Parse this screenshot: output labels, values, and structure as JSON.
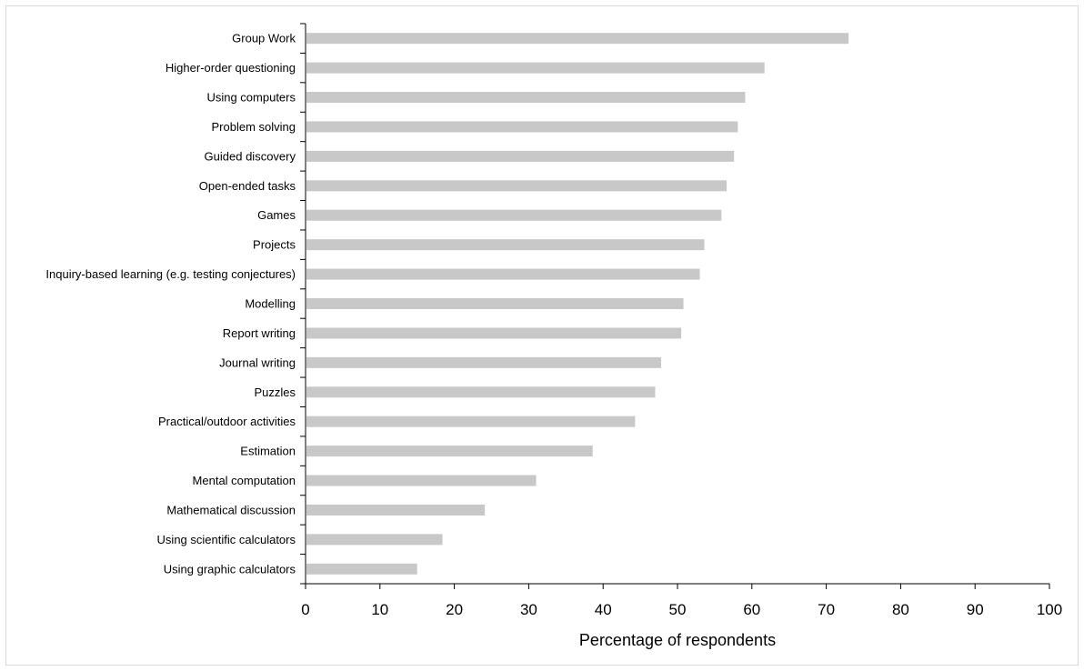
{
  "chart_data": {
    "type": "bar",
    "orientation": "horizontal",
    "title": "",
    "xlabel": "Percentage of respondents",
    "ylabel": "",
    "xlim": [
      0,
      100
    ],
    "x_ticks": [
      "0",
      "10",
      "20",
      "30",
      "40",
      "50",
      "60",
      "70",
      "80",
      "90",
      "100"
    ],
    "grid": false,
    "legend": "none",
    "bar_color": "#c8c8c8",
    "categories": [
      "Group Work",
      "Higher-order questioning",
      "Using computers",
      "Problem solving",
      "Guided discovery",
      "Open-ended tasks",
      "Games",
      "Projects",
      "Inquiry-based learning (e.g. testing conjectures)",
      "Modelling",
      "Report writing",
      "Journal writing",
      "Puzzles",
      "Practical/outdoor activities",
      "Estimation",
      "Mental computation",
      "Mathematical discussion",
      "Using scientific calculators",
      "Using graphic calculators"
    ],
    "values": [
      73,
      61.7,
      59.1,
      58.1,
      57.6,
      56.6,
      55.9,
      53.6,
      53.0,
      50.8,
      50.5,
      47.8,
      47.0,
      44.3,
      38.6,
      31.0,
      24.1,
      18.4,
      15.0
    ]
  }
}
